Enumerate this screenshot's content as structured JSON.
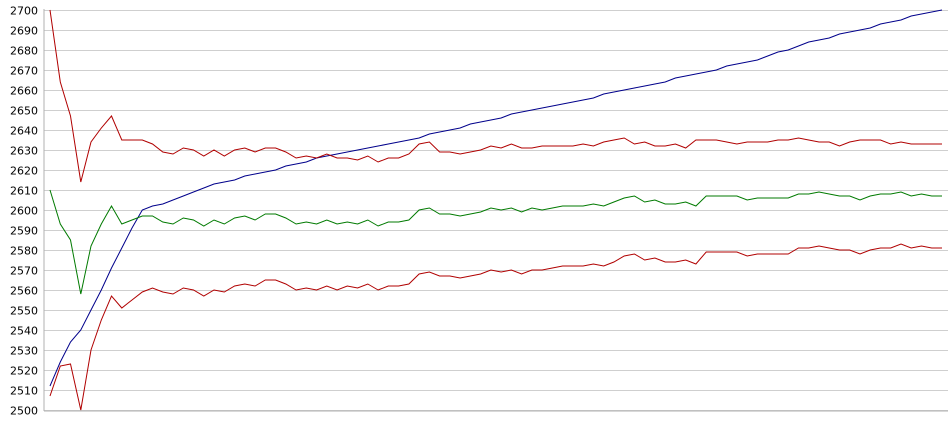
{
  "chart_data": {
    "type": "line",
    "ylim": [
      2500,
      2700
    ],
    "yticks": [
      2700,
      2690,
      2680,
      2670,
      2660,
      2650,
      2640,
      2630,
      2620,
      2610,
      2600,
      2590,
      2580,
      2570,
      2560,
      2550,
      2540,
      2530,
      2520,
      2510,
      2500
    ],
    "grid": true,
    "series": [
      {
        "color": "#00008b",
        "values": [
          2512,
          2524,
          2534,
          2540,
          2550,
          2560,
          2571,
          2581,
          2591,
          2600,
          2602,
          2603,
          2605,
          2607,
          2609,
          2611,
          2613,
          2614,
          2615,
          2617,
          2618,
          2619,
          2620,
          2622,
          2623,
          2624,
          2626,
          2627,
          2628,
          2629,
          2630,
          2631,
          2632,
          2633,
          2634,
          2635,
          2636,
          2638,
          2639,
          2640,
          2641,
          2643,
          2644,
          2645,
          2646,
          2648,
          2649,
          2650,
          2651,
          2652,
          2653,
          2654,
          2655,
          2656,
          2658,
          2659,
          2660,
          2661,
          2662,
          2663,
          2664,
          2666,
          2667,
          2668,
          2669,
          2670,
          2672,
          2673,
          2674,
          2675,
          2677,
          2679,
          2680,
          2682,
          2684,
          2685,
          2686,
          2688,
          2689,
          2690,
          2691,
          2693,
          2694,
          2695,
          2697,
          2698,
          2699,
          2700
        ]
      },
      {
        "color": "#b00000",
        "values": [
          2700,
          2664,
          2647,
          2614,
          2634,
          2641,
          2647,
          2635,
          2635,
          2635,
          2633,
          2629,
          2628,
          2631,
          2630,
          2627,
          2630,
          2627,
          2630,
          2631,
          2629,
          2631,
          2631,
          2629,
          2626,
          2627,
          2626,
          2628,
          2626,
          2626,
          2625,
          2627,
          2624,
          2626,
          2626,
          2628,
          2633,
          2634,
          2629,
          2629,
          2628,
          2629,
          2630,
          2632,
          2631,
          2633,
          2631,
          2631,
          2632,
          2632,
          2632,
          2632,
          2633,
          2632,
          2634,
          2635,
          2636,
          2633,
          2634,
          2632,
          2632,
          2633,
          2631,
          2635,
          2635,
          2635,
          2634,
          2633,
          2634,
          2634,
          2634,
          2635,
          2635,
          2636,
          2635,
          2634,
          2634,
          2632,
          2634,
          2635,
          2635,
          2635,
          2633,
          2634,
          2633,
          2633,
          2633,
          2633
        ]
      },
      {
        "color": "#007a00",
        "values": [
          2610,
          2593,
          2585,
          2558,
          2582,
          2593,
          2602,
          2593,
          2595,
          2597,
          2597,
          2594,
          2593,
          2596,
          2595,
          2592,
          2595,
          2593,
          2596,
          2597,
          2595,
          2598,
          2598,
          2596,
          2593,
          2594,
          2593,
          2595,
          2593,
          2594,
          2593,
          2595,
          2592,
          2594,
          2594,
          2595,
          2600,
          2601,
          2598,
          2598,
          2597,
          2598,
          2599,
          2601,
          2600,
          2601,
          2599,
          2601,
          2600,
          2601,
          2602,
          2602,
          2602,
          2603,
          2602,
          2604,
          2606,
          2607,
          2604,
          2605,
          2603,
          2603,
          2604,
          2602,
          2607,
          2607,
          2607,
          2607,
          2605,
          2606,
          2606,
          2606,
          2606,
          2608,
          2608,
          2609,
          2608,
          2607,
          2607,
          2605,
          2607,
          2608,
          2608,
          2609,
          2607,
          2608,
          2607,
          2607
        ]
      },
      {
        "color": "#b00000",
        "values": [
          2507,
          2522,
          2523,
          2500,
          2530,
          2545,
          2557,
          2551,
          2555,
          2559,
          2561,
          2559,
          2558,
          2561,
          2560,
          2557,
          2560,
          2559,
          2562,
          2563,
          2562,
          2565,
          2565,
          2563,
          2560,
          2561,
          2560,
          2562,
          2560,
          2562,
          2561,
          2563,
          2560,
          2562,
          2562,
          2563,
          2568,
          2569,
          2567,
          2567,
          2566,
          2567,
          2568,
          2570,
          2569,
          2570,
          2568,
          2570,
          2570,
          2571,
          2572,
          2572,
          2572,
          2573,
          2572,
          2574,
          2577,
          2578,
          2575,
          2576,
          2574,
          2574,
          2575,
          2573,
          2579,
          2579,
          2579,
          2579,
          2577,
          2578,
          2578,
          2578,
          2578,
          2581,
          2581,
          2582,
          2581,
          2580,
          2580,
          2578,
          2580,
          2581,
          2581,
          2583,
          2581,
          2582,
          2581,
          2581
        ]
      }
    ]
  }
}
